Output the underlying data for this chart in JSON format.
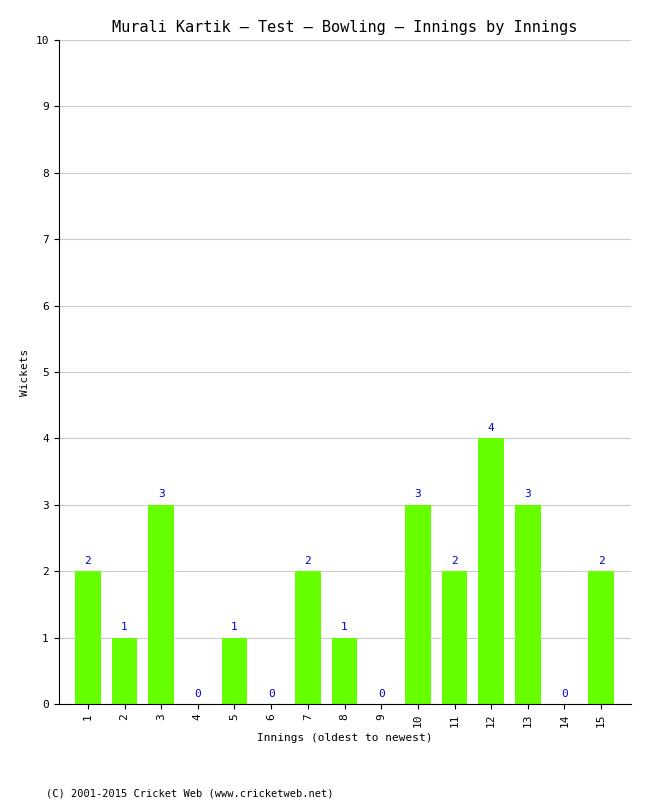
{
  "title": "Murali Kartik – Test – Bowling – Innings by Innings",
  "innings": [
    1,
    2,
    3,
    4,
    5,
    6,
    7,
    8,
    9,
    10,
    11,
    12,
    13,
    14,
    15
  ],
  "wickets": [
    2,
    1,
    3,
    0,
    1,
    0,
    2,
    1,
    0,
    3,
    2,
    4,
    3,
    0,
    2
  ],
  "bar_color": "#66ff00",
  "xlabel": "Innings (oldest to newest)",
  "ylabel": "Wickets",
  "ylim": [
    0,
    10
  ],
  "yticks": [
    0,
    1,
    2,
    3,
    4,
    5,
    6,
    7,
    8,
    9,
    10
  ],
  "label_color": "#0000cc",
  "label_fontsize": 8,
  "title_fontsize": 11,
  "axis_label_fontsize": 8,
  "tick_fontsize": 8,
  "footer": "(C) 2001-2015 Cricket Web (www.cricketweb.net)",
  "footer_fontsize": 7.5,
  "background_color": "#ffffff",
  "grid_color": "#cccccc",
  "font_family": "monospace"
}
